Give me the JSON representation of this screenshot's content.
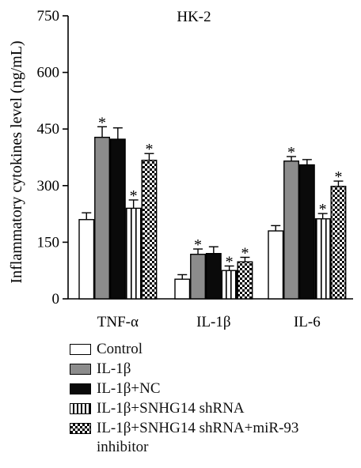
{
  "chart_data": {
    "type": "bar",
    "title": "HK-2",
    "xlabel": "",
    "ylabel": "Inflammatory cytokines level (ng/mL)",
    "ylim": [
      0,
      750
    ],
    "yticks": [
      0,
      150,
      300,
      450,
      600,
      750
    ],
    "categories": [
      "TNF-α",
      "IL-1β",
      "IL-6"
    ],
    "significance_marker": "*",
    "series": [
      {
        "name": "Control",
        "fill": "#ffffff",
        "pattern": "none",
        "values": [
          210,
          52,
          180
        ],
        "errors": [
          18,
          12,
          14
        ],
        "significant": [
          false,
          false,
          false
        ]
      },
      {
        "name": "IL-1β",
        "fill": "#8c8c8c",
        "pattern": "none",
        "values": [
          428,
          118,
          365
        ],
        "errors": [
          28,
          14,
          12
        ],
        "significant": [
          true,
          true,
          true
        ]
      },
      {
        "name": "IL-1β+NC",
        "fill": "#0a0a0a",
        "pattern": "none",
        "values": [
          423,
          120,
          355
        ],
        "errors": [
          30,
          18,
          14
        ],
        "significant": [
          false,
          false,
          false
        ]
      },
      {
        "name": "IL-1β+SNHG14 shRNA",
        "fill": "#ffffff",
        "pattern": "vstripe",
        "values": [
          240,
          75,
          212
        ],
        "errors": [
          22,
          12,
          14
        ],
        "significant": [
          true,
          true,
          true
        ]
      },
      {
        "name": "IL-1β+SNHG14 shRNA+miR-93 inhibitor",
        "fill": "#ffffff",
        "pattern": "checker",
        "values": [
          367,
          98,
          298
        ],
        "errors": [
          18,
          12,
          14
        ],
        "significant": [
          true,
          true,
          true
        ]
      }
    ]
  },
  "legend": {
    "items": [
      "Control",
      "IL-1β",
      "IL-1β+NC",
      "IL-1β+SNHG14 shRNA",
      "IL-1β+SNHG14 shRNA+miR-93"
    ],
    "continuation": "inhibitor"
  }
}
